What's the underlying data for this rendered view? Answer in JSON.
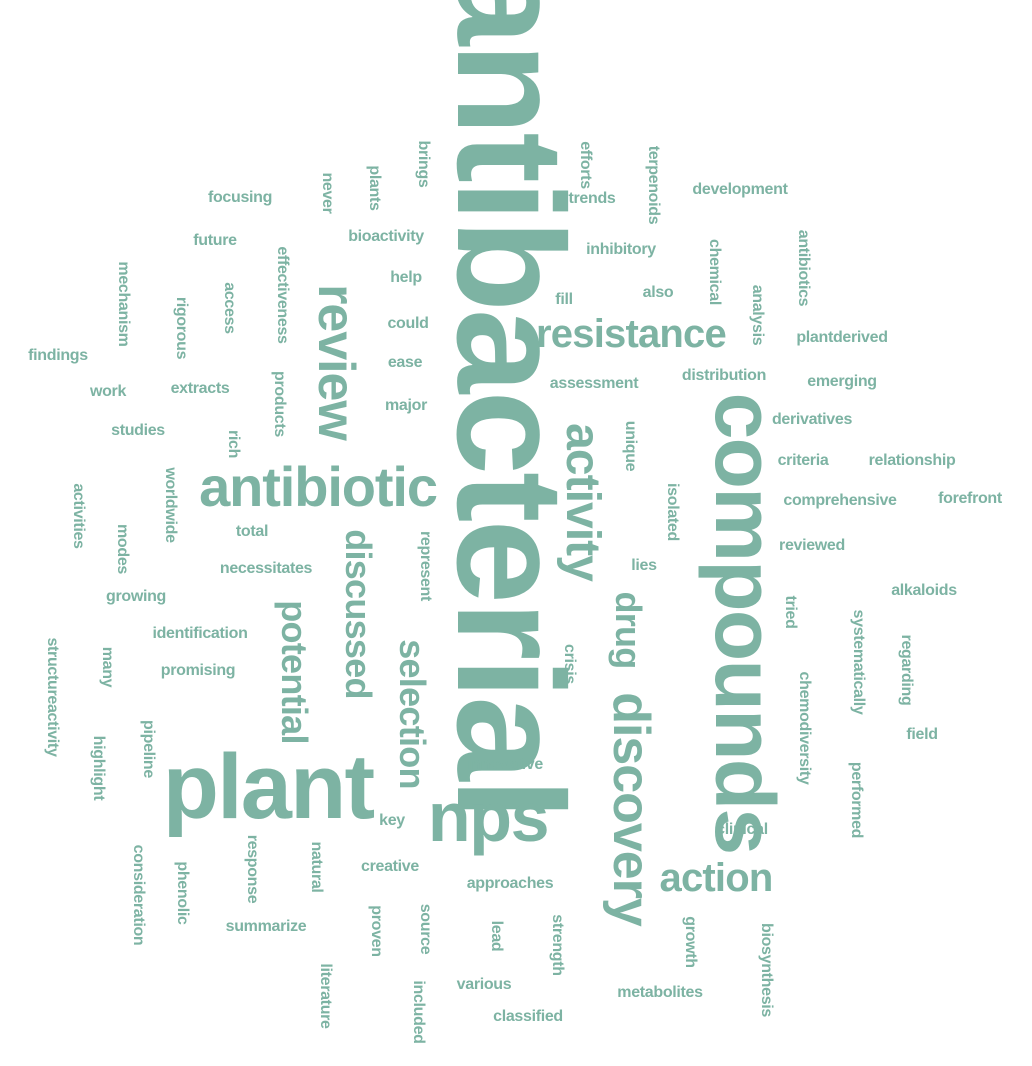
{
  "color": "#7db3a3",
  "background": "#ffffff",
  "words": [
    "antibacterial",
    "compounds",
    "plant",
    "nps",
    "review",
    "antibiotic",
    "discovery",
    "activity",
    "resistance",
    "drug",
    "selection",
    "potential",
    "discussed",
    "action",
    "innovative",
    "crisis",
    "brings",
    "plants",
    "never",
    "efforts",
    "terpenoids",
    "trends",
    "development",
    "focusing",
    "bioactivity",
    "future",
    "effectiveness",
    "inhibitory",
    "chemical",
    "antibiotics",
    "mechanism",
    "help",
    "access",
    "rigorous",
    "fill",
    "also",
    "analysis",
    "could",
    "findings",
    "ease",
    "plantderived",
    "work",
    "extracts",
    "products",
    "assessment",
    "distribution",
    "emerging",
    "major",
    "derivatives",
    "studies",
    "rich",
    "unique",
    "criteria",
    "relationship",
    "worldwide",
    "activities",
    "isolated",
    "comprehensive",
    "forefront",
    "total",
    "modes",
    "represent",
    "reviewed",
    "necessitates",
    "lies",
    "growing",
    "alkaloids",
    "tried",
    "identification",
    "systematically",
    "regarding",
    "structureactivity",
    "many",
    "promising",
    "chemodiversity",
    "pipeline",
    "field",
    "highlight",
    "performed",
    "key",
    "clinical",
    "consideration",
    "response",
    "natural",
    "phenolic",
    "creative",
    "approaches",
    "summarize",
    "proven",
    "source",
    "lead",
    "strength",
    "growth",
    "biosynthesis",
    "literature",
    "various",
    "included",
    "metabolites",
    "classified"
  ]
}
